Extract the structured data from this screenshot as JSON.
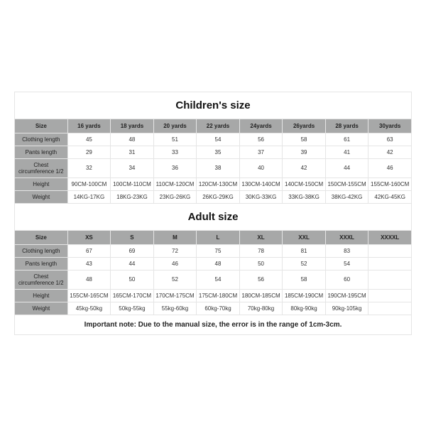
{
  "children": {
    "title": "Children's size",
    "columns": [
      "Size",
      "16 yards",
      "18 yards",
      "20 yards",
      "22 yards",
      "24yards",
      "26yards",
      "28 yards",
      "30yards"
    ],
    "rows": [
      {
        "label": "Clothing length",
        "cells": [
          "45",
          "48",
          "51",
          "54",
          "56",
          "58",
          "61",
          "63"
        ]
      },
      {
        "label": "Pants length",
        "cells": [
          "29",
          "31",
          "33",
          "35",
          "37",
          "39",
          "41",
          "42"
        ]
      },
      {
        "label": "Chest circumference 1/2",
        "cells": [
          "32",
          "34",
          "36",
          "38",
          "40",
          "42",
          "44",
          "46"
        ]
      },
      {
        "label": "Height",
        "cells": [
          "90CM-100CM",
          "100CM-110CM",
          "110CM-120CM",
          "120CM-130CM",
          "130CM-140CM",
          "140CM-150CM",
          "150CM-155CM",
          "155CM-160CM"
        ]
      },
      {
        "label": "Weight",
        "cells": [
          "14KG-17KG",
          "18KG-23KG",
          "23KG-26KG",
          "26KG-29KG",
          "30KG-33KG",
          "33KG-38KG",
          "38KG-42KG",
          "42KG-45KG"
        ]
      }
    ]
  },
  "adult": {
    "title": "Adult size",
    "columns": [
      "Size",
      "XS",
      "S",
      "M",
      "L",
      "XL",
      "XXL",
      "XXXL",
      "XXXXL"
    ],
    "rows": [
      {
        "label": "Clothing length",
        "cells": [
          "67",
          "69",
          "72",
          "75",
          "78",
          "81",
          "83",
          ""
        ]
      },
      {
        "label": "Pants length",
        "cells": [
          "43",
          "44",
          "46",
          "48",
          "50",
          "52",
          "54",
          ""
        ]
      },
      {
        "label": "Chest circumference 1/2",
        "cells": [
          "48",
          "50",
          "52",
          "54",
          "56",
          "58",
          "60",
          ""
        ]
      },
      {
        "label": "Height",
        "cells": [
          "155CM-165CM",
          "165CM-170CM",
          "170CM-175CM",
          "175CM-180CM",
          "180CM-185CM",
          "185CM-190CM",
          "190CM-195CM",
          ""
        ]
      },
      {
        "label": "Weight",
        "cells": [
          "45kg-50kg",
          "50kg-55kg",
          "55kg-60kg",
          "60kg-70kg",
          "70kg-80kg",
          "80kg-90kg",
          "90kg-105kg",
          ""
        ]
      }
    ]
  },
  "note": "Important note: Due to the manual size, the error is in the range of 1cm-3cm.",
  "style": {
    "header_bg": "#a7a8a8",
    "label_bg": "#a7a8a8",
    "data_bg": "#ffffff",
    "border_color": "#e5e5e5",
    "title_fontsize": 15,
    "cell_fontsize": 8,
    "note_fontsize": 10,
    "text_color": "#333"
  }
}
